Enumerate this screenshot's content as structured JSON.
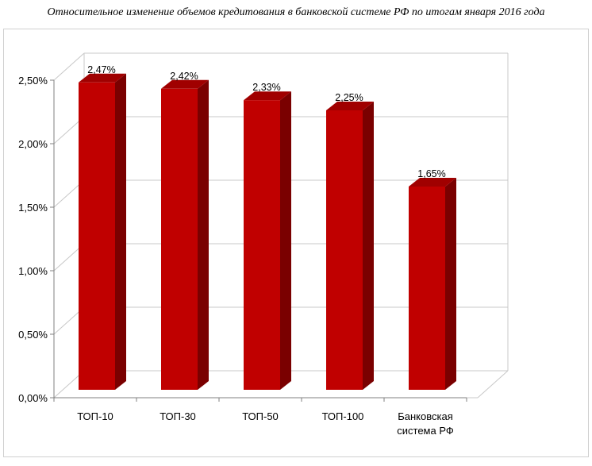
{
  "title": "Относительное изменение объемов кредитования в банковской системе РФ по итогам января 2016 года",
  "chart_data": {
    "type": "bar",
    "title": "Относительное изменение объемов кредитования в банковской системе РФ по итогам января 2016 года",
    "categories": [
      [
        "ТОП-10"
      ],
      [
        "ТОП-30"
      ],
      [
        "ТОП-50"
      ],
      [
        "ТОП-100"
      ],
      [
        "Банковская",
        "система РФ"
      ]
    ],
    "values": [
      2.47,
      2.42,
      2.33,
      2.25,
      1.65
    ],
    "data_labels": [
      "2,47%",
      "2,42%",
      "2,33%",
      "2,25%",
      "1,65%"
    ],
    "yticks": [
      "0,00%",
      "0,50%",
      "1,00%",
      "1,50%",
      "2,00%",
      "2,50%"
    ],
    "ylim": [
      0,
      2.5
    ],
    "grid": true,
    "bar_color": "#c00000",
    "bar_side_color": "#7a0000",
    "bar_top_color": "#a00000"
  }
}
